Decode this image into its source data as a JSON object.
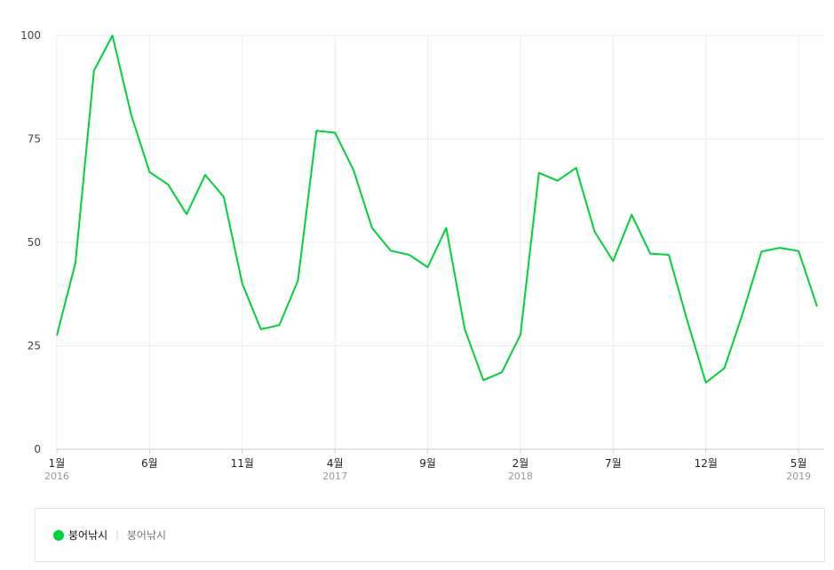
{
  "chart_data": {
    "type": "line",
    "ylim": [
      0,
      100
    ],
    "yticks": [
      0,
      25,
      50,
      75,
      100
    ],
    "grid": true,
    "legend_position": "bottom",
    "colors": {
      "line": "#00d13a",
      "grid": "#ececec",
      "axis": "#cccccc"
    },
    "x": [
      "2016-01",
      "2016-02",
      "2016-03",
      "2016-04",
      "2016-05",
      "2016-06",
      "2016-07",
      "2016-08",
      "2016-09",
      "2016-10",
      "2016-11",
      "2016-12",
      "2017-01",
      "2017-02",
      "2017-03",
      "2017-04",
      "2017-05",
      "2017-06",
      "2017-07",
      "2017-08",
      "2017-09",
      "2017-10",
      "2017-11",
      "2017-12",
      "2018-01",
      "2018-02",
      "2018-03",
      "2018-04",
      "2018-05",
      "2018-06",
      "2018-07",
      "2018-08",
      "2018-09",
      "2018-10",
      "2018-11",
      "2018-12",
      "2019-01",
      "2019-02",
      "2019-03",
      "2019-04",
      "2019-05",
      "2019-06"
    ],
    "xticks": [
      {
        "month": "1월",
        "year": "2016",
        "index": 0
      },
      {
        "month": "6월",
        "year": "",
        "index": 5
      },
      {
        "month": "11월",
        "year": "",
        "index": 10
      },
      {
        "month": "4월",
        "year": "2017",
        "index": 15
      },
      {
        "month": "9월",
        "year": "",
        "index": 20
      },
      {
        "month": "2월",
        "year": "2018",
        "index": 25
      },
      {
        "month": "7월",
        "year": "",
        "index": 30
      },
      {
        "month": "12월",
        "year": "",
        "index": 35
      },
      {
        "month": "5월",
        "year": "2019",
        "index": 40
      }
    ],
    "series": [
      {
        "name": "붕어낚시",
        "values": [
          27.5,
          45,
          91.5,
          100,
          81,
          67,
          64,
          56.8,
          66.3,
          61,
          40,
          29,
          30,
          40.7,
          77,
          76.5,
          67.5,
          53.5,
          48,
          47,
          44,
          53.5,
          29,
          16.7,
          18.6,
          27.7,
          66.8,
          64.9,
          68,
          52.6,
          45.5,
          56.7,
          47.3,
          47,
          31,
          16.1,
          19.6,
          33,
          47.8,
          48.7,
          47.9,
          34.5
        ]
      }
    ]
  },
  "legend": {
    "label": "붕어낚시",
    "sublabel": "붕어낚시"
  }
}
